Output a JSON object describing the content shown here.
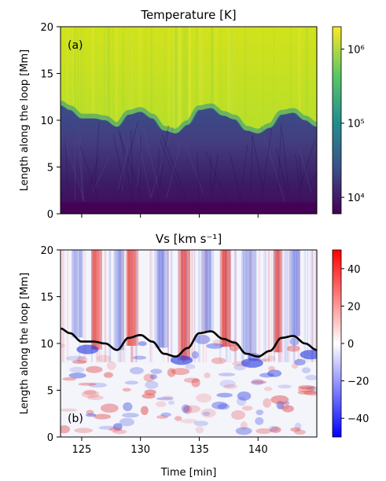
{
  "chart_data": [
    {
      "panel": "(a)",
      "type": "heatmap",
      "title": "Temperature [K]",
      "xlabel": "",
      "ylabel": "Length along the loop [Mm]",
      "xlim": [
        123.2,
        145.0
      ],
      "ylim": [
        0,
        20
      ],
      "yticks": [
        0,
        5,
        10,
        15,
        20
      ],
      "xticks": [
        125,
        130,
        135,
        140
      ],
      "x_ticklabels_shown": false,
      "colorbar": {
        "scale": "log",
        "range": [
          6000,
          2000000
        ],
        "ticks": [
          10000,
          100000,
          1000000
        ],
        "ticklabels": [
          "10⁴",
          "10⁵",
          "10⁶"
        ],
        "colormap": [
          "#440154",
          "#3b528b",
          "#21918c",
          "#5ec962",
          "#fde725"
        ]
      },
      "transition_region_height": {
        "time": [
          123.2,
          124.0,
          125.0,
          126.0,
          127.0,
          128.0,
          129.0,
          130.0,
          131.0,
          132.0,
          133.0,
          134.0,
          135.0,
          136.0,
          137.0,
          138.0,
          139.0,
          140.0,
          141.0,
          142.0,
          143.0,
          144.0,
          145.0
        ],
        "height": [
          11.6,
          11.1,
          10.2,
          10.2,
          10.0,
          9.3,
          10.6,
          10.9,
          10.2,
          8.9,
          8.6,
          9.5,
          11.1,
          11.3,
          10.5,
          10.1,
          8.9,
          8.6,
          9.2,
          10.6,
          10.8,
          10.0,
          9.3
        ]
      },
      "description_of_fill": "cool chromosphere (~10^4 K) below the transition-region height, hot corona (~10^6 K) above"
    },
    {
      "panel": "(b)",
      "type": "heatmap",
      "title": "Vs [km s⁻¹]",
      "xlabel": "Time [min]",
      "ylabel": "Length along the loop [Mm]",
      "xlim": [
        123.2,
        145.0
      ],
      "ylim": [
        0,
        20
      ],
      "yticks": [
        0,
        5,
        10,
        15,
        20
      ],
      "xticks": [
        125,
        130,
        135,
        140
      ],
      "colorbar": {
        "scale": "linear",
        "range": [
          -50,
          50
        ],
        "ticks": [
          -40,
          -20,
          0,
          20,
          40
        ],
        "ticklabels": [
          "−40",
          "−20",
          "0",
          "20",
          "40"
        ],
        "colormap": [
          "#0000ff",
          "#ffffff",
          "#ff0000"
        ]
      },
      "overlay_line": "transition_region_height",
      "upflow_bands_positive_time": [
        126.0,
        129.0,
        133.5,
        137.0,
        141.5
      ],
      "downflow_bands_negative_time": [
        124.5,
        128.0,
        131.5,
        135.5,
        139.0,
        143.0
      ]
    }
  ],
  "labels": {
    "title_a": "Temperature [K]",
    "title_b": "Vs [km s⁻¹]",
    "panel_a": "(a)",
    "panel_b": "(b)",
    "ylabel": "Length along the loop [Mm]",
    "xlabel": "Time [min]"
  }
}
